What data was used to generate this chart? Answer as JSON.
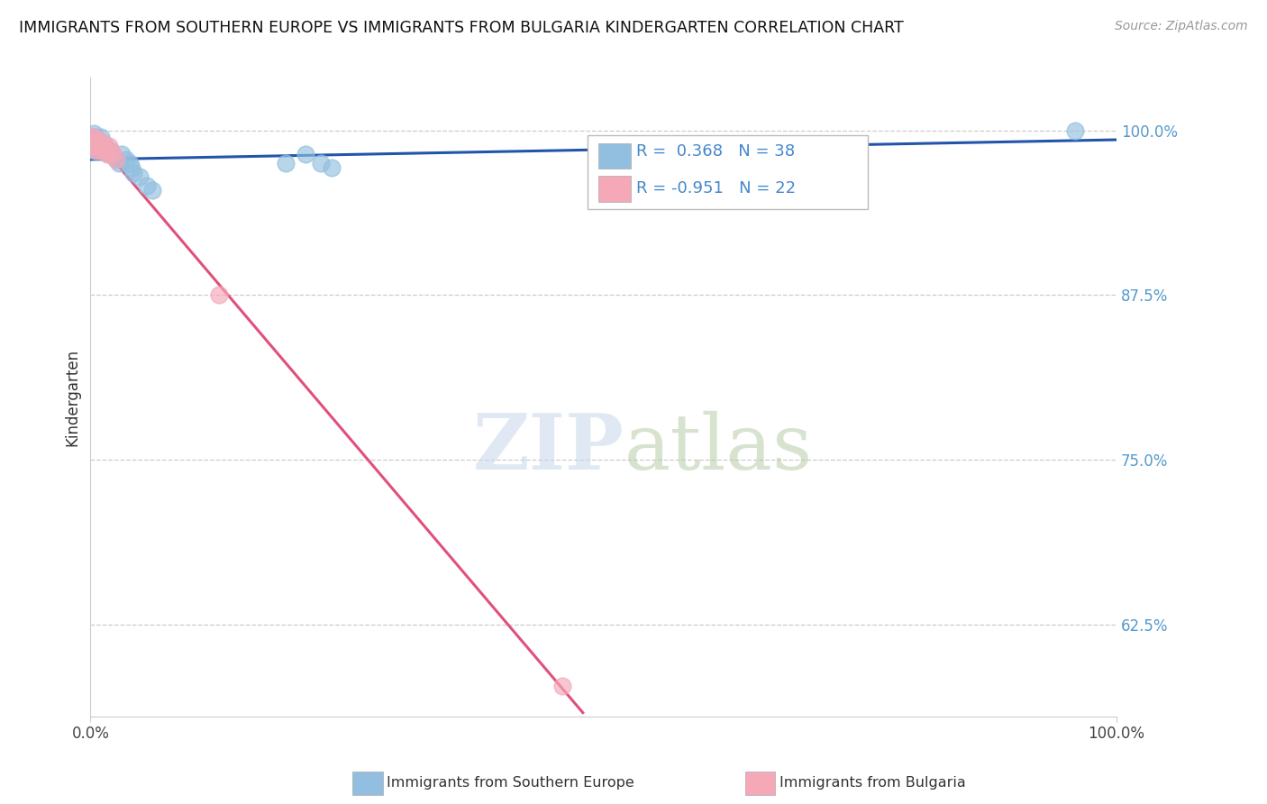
{
  "title": "IMMIGRANTS FROM SOUTHERN EUROPE VS IMMIGRANTS FROM BULGARIA KINDERGARTEN CORRELATION CHART",
  "source": "Source: ZipAtlas.com",
  "ylabel": "Kindergarten",
  "ylabel_right_ticks": [
    "100.0%",
    "87.5%",
    "75.0%",
    "62.5%"
  ],
  "ylabel_right_vals": [
    1.0,
    0.875,
    0.75,
    0.625
  ],
  "blue_R": 0.368,
  "blue_N": 38,
  "pink_R": -0.951,
  "pink_N": 22,
  "blue_color": "#92bfdf",
  "pink_color": "#f4a8b8",
  "blue_line_color": "#2255aa",
  "pink_line_color": "#e0507a",
  "xlim": [
    0.0,
    1.0
  ],
  "ylim": [
    0.555,
    1.04
  ],
  "blue_scatter_x": [
    0.001,
    0.002,
    0.003,
    0.003,
    0.004,
    0.005,
    0.005,
    0.006,
    0.007,
    0.007,
    0.008,
    0.009,
    0.01,
    0.01,
    0.011,
    0.012,
    0.013,
    0.014,
    0.015,
    0.016,
    0.018,
    0.02,
    0.022,
    0.025,
    0.028,
    0.03,
    0.035,
    0.038,
    0.04,
    0.042,
    0.048,
    0.055,
    0.06,
    0.19,
    0.21,
    0.225,
    0.235,
    0.96
  ],
  "blue_scatter_y": [
    0.995,
    0.99,
    0.985,
    0.998,
    0.992,
    0.988,
    0.995,
    0.99,
    0.985,
    0.992,
    0.988,
    0.985,
    0.99,
    0.995,
    0.988,
    0.985,
    0.99,
    0.985,
    0.988,
    0.985,
    0.982,
    0.985,
    0.982,
    0.978,
    0.975,
    0.982,
    0.978,
    0.975,
    0.972,
    0.968,
    0.965,
    0.958,
    0.955,
    0.975,
    0.982,
    0.975,
    0.972,
    1.0
  ],
  "pink_scatter_x": [
    0.001,
    0.002,
    0.003,
    0.003,
    0.004,
    0.005,
    0.006,
    0.007,
    0.008,
    0.009,
    0.01,
    0.011,
    0.012,
    0.013,
    0.015,
    0.016,
    0.018,
    0.02,
    0.022,
    0.025,
    0.125,
    0.46
  ],
  "pink_scatter_y": [
    0.995,
    0.99,
    0.988,
    0.995,
    0.992,
    0.988,
    0.985,
    0.99,
    0.988,
    0.992,
    0.988,
    0.985,
    0.99,
    0.986,
    0.985,
    0.982,
    0.988,
    0.985,
    0.982,
    0.978,
    0.875,
    0.578
  ],
  "blue_line_x0": 0.0,
  "blue_line_x1": 1.0,
  "blue_line_y0": 0.978,
  "blue_line_y1": 0.993,
  "pink_line_x0": 0.0,
  "pink_line_x1": 0.48,
  "pink_line_y0": 0.998,
  "pink_line_y1": 0.558
}
